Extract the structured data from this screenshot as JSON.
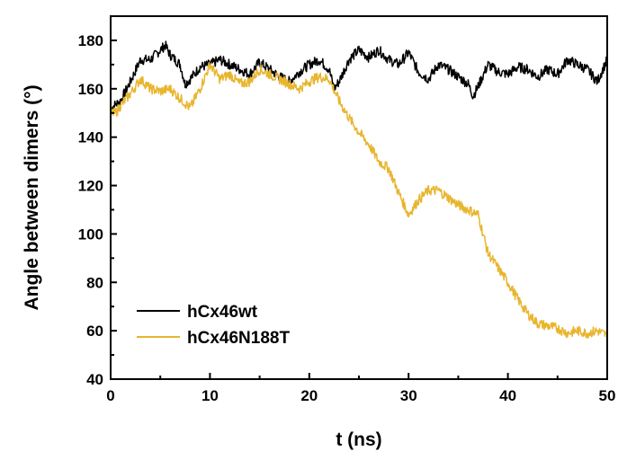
{
  "chart_data": {
    "type": "line",
    "xlabel": "t (ns)",
    "ylabel": "Angle between dimers (°)",
    "xlim": [
      0,
      50
    ],
    "ylim": [
      40,
      190
    ],
    "x_ticks": [
      0,
      10,
      20,
      30,
      40,
      50
    ],
    "y_ticks": [
      40,
      60,
      80,
      100,
      120,
      140,
      160,
      180
    ],
    "grid": false,
    "legend_position": "bottom-left",
    "series": [
      {
        "name": "hCx46wt",
        "color": "#000000",
        "x": [
          0,
          1,
          2,
          3,
          4,
          5,
          5.5,
          6,
          7,
          7.5,
          8,
          9,
          10,
          11,
          12,
          13,
          14,
          15,
          16,
          17,
          18,
          19,
          20,
          21,
          22,
          22.5,
          23,
          24,
          25,
          26,
          27,
          28,
          29,
          30,
          31,
          32,
          33,
          34,
          35,
          36,
          36.5,
          37,
          38,
          39,
          40,
          41,
          42,
          43,
          44,
          45,
          46,
          47,
          48,
          49,
          50
        ],
        "y": [
          152,
          155,
          163,
          172,
          172,
          176,
          178,
          174,
          170,
          162,
          164,
          169,
          170,
          172,
          170,
          168,
          166,
          171,
          168,
          165,
          163,
          167,
          170,
          172,
          168,
          160,
          163,
          172,
          176,
          173,
          176,
          172,
          170,
          175,
          167,
          164,
          170,
          168,
          165,
          162,
          157,
          161,
          170,
          167,
          166,
          169,
          168,
          165,
          168,
          166,
          172,
          170,
          168,
          163,
          172
        ]
      },
      {
        "name": "hCx46N188T",
        "color": "#E8B52E",
        "x": [
          0,
          0.5,
          1,
          2,
          3,
          4,
          5,
          6,
          7,
          8,
          9,
          10,
          11,
          12,
          13,
          14,
          15,
          16,
          17,
          18,
          19,
          20,
          21,
          22,
          23,
          24,
          25,
          26,
          27,
          28,
          29,
          30,
          31,
          32,
          33,
          34,
          35,
          36,
          37,
          38,
          39,
          40,
          41,
          42,
          43,
          44,
          45,
          46,
          47,
          48,
          49,
          50
        ],
        "y": [
          150,
          150,
          153,
          158,
          164,
          160,
          159,
          160,
          156,
          152,
          160,
          170,
          164,
          166,
          162,
          163,
          168,
          166,
          164,
          162,
          160,
          163,
          165,
          164,
          155,
          148,
          142,
          137,
          130,
          127,
          117,
          108,
          114,
          118,
          118,
          115,
          112,
          110,
          108,
          92,
          86,
          80,
          73,
          67,
          63,
          62,
          61,
          59,
          60,
          59,
          60,
          58
        ]
      }
    ]
  }
}
